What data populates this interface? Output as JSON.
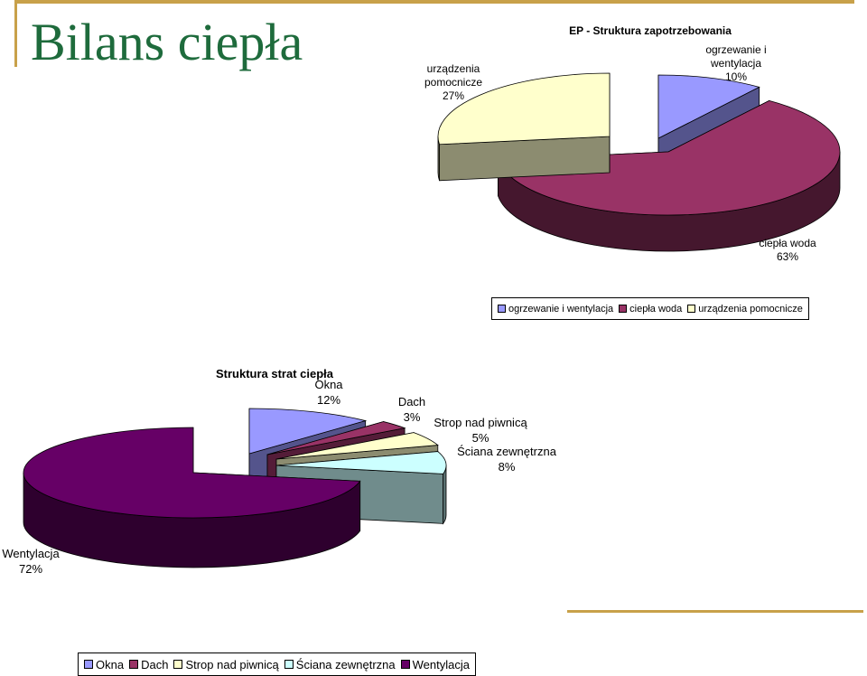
{
  "slide": {
    "title": "Bilans ciepła"
  },
  "chart_data": [
    {
      "type": "pie",
      "title": "EP - Struktura zapotrzebowania",
      "slices": [
        {
          "name": "ogrzewanie i wentylacja",
          "value": 10,
          "label": "10%",
          "color": "#9999ff"
        },
        {
          "name": "ciepła woda",
          "value": 63,
          "label": "63%",
          "color": "#993366"
        },
        {
          "name": "urządzenia pomocnicze",
          "value": 27,
          "label": "27%",
          "color": "#ffffcc"
        }
      ],
      "legend": "bottom",
      "legend_items": [
        "ogrzewanie i wentylacja",
        "ciepła woda",
        "urządzenia pomocnicze"
      ]
    },
    {
      "type": "pie",
      "title": "Struktura strat ciepła",
      "slices": [
        {
          "name": "Okna",
          "value": 12,
          "label": "12%",
          "color": "#9999ff"
        },
        {
          "name": "Dach",
          "value": 3,
          "label": "3%",
          "color": "#993366"
        },
        {
          "name": "Strop nad piwnicą",
          "value": 5,
          "label": "5%",
          "color": "#ffffcc"
        },
        {
          "name": "Ściana zewnętrzna",
          "value": 8,
          "label": "8%",
          "color": "#ccffff"
        },
        {
          "name": "Wentylacja",
          "value": 72,
          "label": "72%",
          "color": "#660066"
        }
      ],
      "legend": "bottom",
      "legend_items": [
        "Okna",
        "Dach",
        "Strop nad piwnicą",
        "Ściana zewnętrzna",
        "Wentylacja"
      ]
    }
  ]
}
